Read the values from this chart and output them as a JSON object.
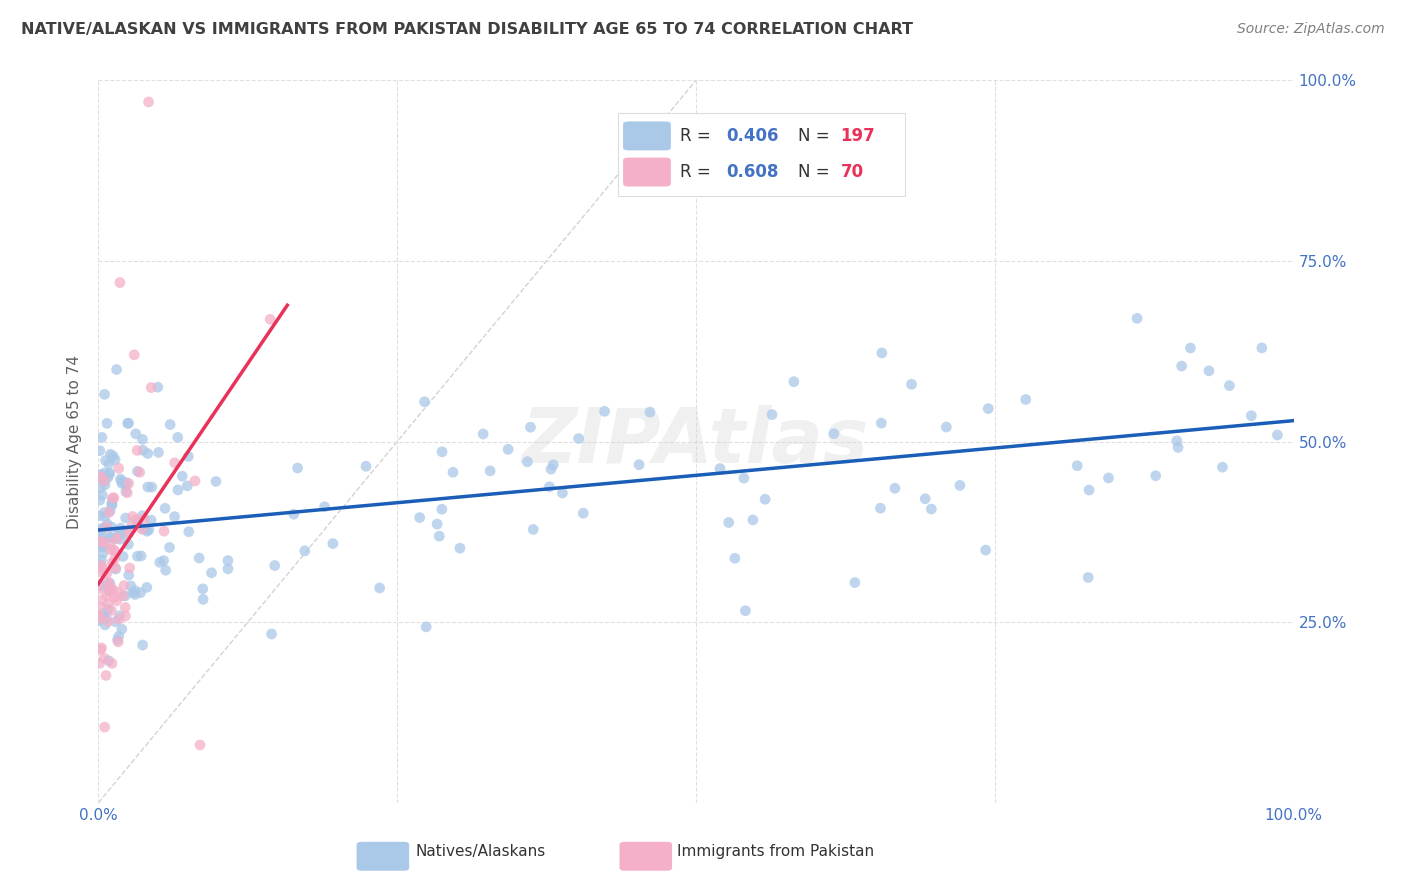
{
  "title": "NATIVE/ALASKAN VS IMMIGRANTS FROM PAKISTAN DISABILITY AGE 65 TO 74 CORRELATION CHART",
  "source": "Source: ZipAtlas.com",
  "ylabel": "Disability Age 65 to 74",
  "blue_scatter_color": "#aac8e8",
  "pink_scatter_color": "#f4b0c8",
  "blue_line_color": "#1a5eb8",
  "pink_line_color": "#e8325a",
  "diagonal_color": "#c8c8c8",
  "background_color": "#ffffff",
  "grid_color": "#e0e0e0",
  "title_color": "#404040",
  "source_color": "#808080",
  "axis_label_color": "#606060",
  "tick_color": "#4472c4",
  "r_value_color": "#4472c4",
  "n_value_color": "#e8325a",
  "blue_N": 197,
  "pink_N": 70,
  "blue_R": 0.406,
  "pink_R": 0.608
}
